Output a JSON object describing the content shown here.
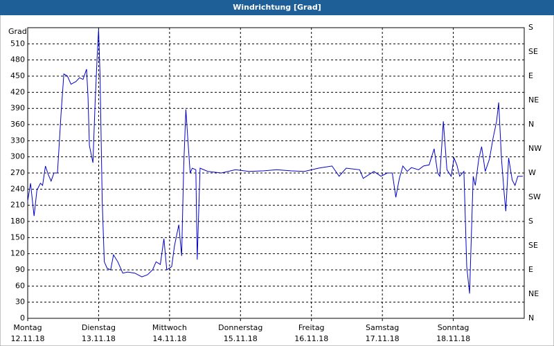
{
  "chart_data": {
    "type": "line",
    "title": "Windrichtung [Grad]",
    "ylabel": "Grad",
    "xlim": [
      0,
      7
    ],
    "ylim": [
      0,
      540
    ],
    "y2lim": [
      0,
      540
    ],
    "grid": true,
    "xticks": [
      {
        "value": 0,
        "label": "Montag",
        "date": "12.11.18"
      },
      {
        "value": 1,
        "label": "Dienstag",
        "date": "13.11.18"
      },
      {
        "value": 2,
        "label": "Mittwoch",
        "date": "14.11.18"
      },
      {
        "value": 3,
        "label": "Donnerstag",
        "date": "15.11.18"
      },
      {
        "value": 4,
        "label": "Freitag",
        "date": "16.11.18"
      },
      {
        "value": 5,
        "label": "Samstag",
        "date": "17.11.18"
      },
      {
        "value": 6,
        "label": "Sonntag",
        "date": "18.11.18"
      }
    ],
    "yticks": [
      0,
      30,
      60,
      90,
      120,
      150,
      180,
      210,
      240,
      270,
      300,
      330,
      360,
      390,
      420,
      450,
      480,
      510
    ],
    "y2ticks": [
      {
        "value": 0,
        "label": "N"
      },
      {
        "value": 45,
        "label": "NE"
      },
      {
        "value": 90,
        "label": "E"
      },
      {
        "value": 135,
        "label": "SE"
      },
      {
        "value": 180,
        "label": "S"
      },
      {
        "value": 225,
        "label": "SW"
      },
      {
        "value": 270,
        "label": "W"
      },
      {
        "value": 315,
        "label": "NW"
      },
      {
        "value": 360,
        "label": "N"
      },
      {
        "value": 405,
        "label": "NE"
      },
      {
        "value": 450,
        "label": "E"
      },
      {
        "value": 495,
        "label": "SE"
      },
      {
        "value": 540,
        "label": "S"
      }
    ],
    "series": [
      {
        "color": "#0000c8",
        "x": [
          0,
          0.04,
          0.09,
          0.13,
          0.18,
          0.21,
          0.25,
          0.29,
          0.33,
          0.37,
          0.42,
          0.47,
          0.51,
          0.56,
          0.61,
          0.68,
          0.73,
          0.78,
          0.83,
          0.85,
          0.87,
          0.92,
          0.95,
          0.98,
          1.0,
          1.02,
          1.05,
          1.08,
          1.12,
          1.17,
          1.21,
          1.27,
          1.34,
          1.41,
          1.51,
          1.61,
          1.69,
          1.76,
          1.81,
          1.87,
          1.92,
          1.96,
          2.03,
          2.07,
          2.13,
          2.17,
          2.2,
          2.23,
          2.26,
          2.29,
          2.32,
          2.37,
          2.39,
          2.43,
          2.54,
          2.73,
          2.93,
          3.12,
          3.32,
          3.51,
          3.71,
          3.9,
          4.1,
          4.29,
          4.39,
          4.49,
          4.68,
          4.73,
          4.88,
          4.98,
          5.07,
          5.14,
          5.19,
          5.24,
          5.29,
          5.35,
          5.41,
          5.51,
          5.58,
          5.66,
          5.73,
          5.78,
          5.81,
          5.86,
          5.91,
          5.97,
          6.01,
          6.05,
          6.09,
          6.15,
          6.19,
          6.23,
          6.28,
          6.31,
          6.36,
          6.4,
          6.45,
          6.51,
          6.56,
          6.61,
          6.64,
          6.68,
          6.72,
          6.74,
          6.78,
          6.83,
          6.87,
          6.91,
          6.98
        ],
        "values": [
          218,
          251,
          190,
          238,
          251,
          247,
          283,
          267,
          255,
          270,
          270,
          379,
          454,
          450,
          435,
          440,
          447,
          444,
          463,
          411,
          321,
          289,
          399,
          489,
          537,
          450,
          218,
          105,
          93,
          90,
          118,
          105,
          84,
          86,
          84,
          77,
          81,
          90,
          105,
          100,
          148,
          90,
          96,
          135,
          174,
          116,
          283,
          388,
          328,
          270,
          279,
          276,
          109,
          279,
          273,
          270,
          276,
          273,
          274,
          276,
          274,
          273,
          279,
          283,
          264,
          279,
          276,
          260,
          273,
          264,
          270,
          270,
          225,
          260,
          283,
          273,
          280,
          276,
          283,
          285,
          315,
          270,
          264,
          366,
          276,
          264,
          298,
          285,
          264,
          273,
          96,
          46,
          264,
          247,
          296,
          319,
          273,
          296,
          334,
          366,
          401,
          296,
          228,
          199,
          298,
          257,
          247,
          264,
          264
        ]
      }
    ]
  }
}
